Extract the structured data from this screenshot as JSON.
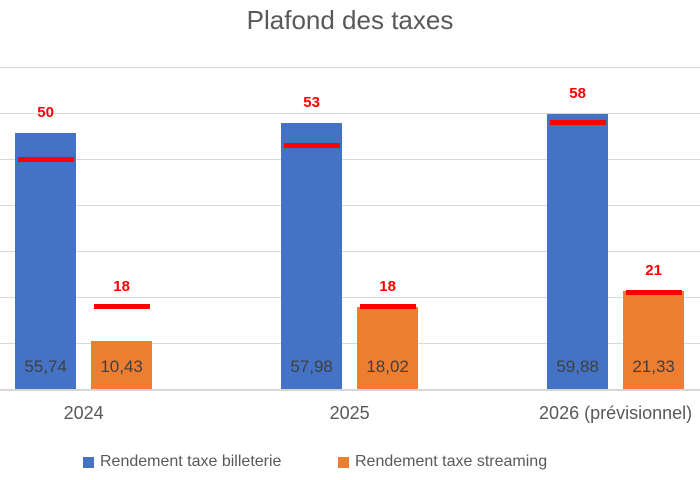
{
  "chart_data": {
    "type": "bar",
    "title": "Plafond des taxes",
    "categories": [
      "2024",
      "2025",
      "2026 (prévisionnel)"
    ],
    "series": [
      {
        "name": "Rendement taxe billeterie",
        "color": "#4472C4",
        "values": [
          55.74,
          57.98,
          59.88
        ],
        "value_labels": [
          "55,74",
          "57,98",
          "59,88"
        ]
      },
      {
        "name": "Rendement taxe streaming",
        "color": "#ED7D31",
        "values": [
          10.43,
          18.02,
          21.33
        ],
        "value_labels": [
          "10,43",
          "18,02",
          "21,33"
        ]
      }
    ],
    "ceiling_markers": {
      "description": "red horizontal target lines with bold red labels above each bar",
      "color": "#FF0000",
      "values": [
        [
          50,
          53,
          58
        ],
        [
          18,
          18,
          21
        ]
      ],
      "labels": [
        [
          "50",
          "53",
          "58"
        ],
        [
          "18",
          "18",
          "21"
        ]
      ]
    },
    "y_axis": {
      "min": 0,
      "max": 70,
      "step": 10,
      "tick_labels_visible": false
    },
    "grid": true,
    "gridline_color": "#D9D9D9",
    "legend_position": "bottom",
    "text_color": "#595959",
    "value_label_color": "#404040"
  }
}
